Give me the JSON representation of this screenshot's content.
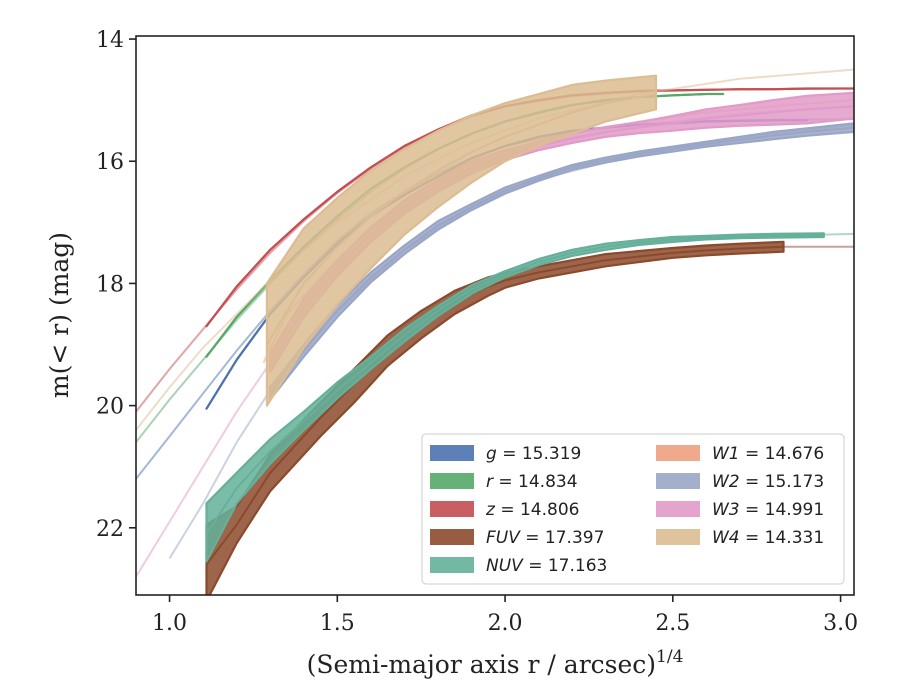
{
  "chart_data": {
    "type": "line",
    "xlabel": "(Semi-major axis r / arcsec)",
    "xlabel_exponent": "1/4",
    "ylabel": "m(< r) (mag)",
    "xlim": [
      0.9,
      3.04
    ],
    "ylim": [
      23.1,
      13.95
    ],
    "y_inverted": true,
    "x_ticks": [
      1.0,
      1.5,
      2.0,
      2.5,
      3.0
    ],
    "x_tick_labels": [
      "1.0",
      "1.5",
      "2.0",
      "2.5",
      "3.0"
    ],
    "y_ticks": [
      14,
      16,
      18,
      20,
      22
    ],
    "y_tick_labels": [
      "14",
      "16",
      "18",
      "20",
      "22"
    ],
    "grid": false,
    "legend_position": "bottom-right",
    "series": [
      {
        "name": "g",
        "value": "15.319",
        "color": "#4c72b0",
        "x": [
          1.11,
          1.2,
          1.3,
          1.4,
          1.5,
          1.6,
          1.7,
          1.8,
          1.9,
          2.0,
          2.1,
          2.2,
          2.3,
          2.4,
          2.5,
          2.6,
          2.7,
          2.8,
          2.9
        ],
        "y": [
          20.05,
          19.25,
          18.5,
          17.9,
          17.35,
          16.9,
          16.55,
          16.25,
          15.95,
          15.75,
          15.6,
          15.5,
          15.45,
          15.4,
          15.38,
          15.35,
          15.34,
          15.33,
          15.33
        ],
        "y_lower": [
          20.05,
          19.25,
          18.5,
          17.9,
          17.35,
          16.9,
          16.55,
          16.25,
          15.95,
          15.75,
          15.6,
          15.5,
          15.45,
          15.4,
          15.38,
          15.35,
          15.34,
          15.33,
          15.33
        ],
        "y_upper": [
          20.05,
          19.25,
          18.5,
          17.9,
          17.35,
          16.9,
          16.55,
          16.25,
          15.95,
          15.75,
          15.6,
          15.5,
          15.45,
          15.4,
          15.38,
          15.35,
          15.34,
          15.33,
          15.33
        ],
        "model_x": [
          0.9,
          1.0,
          1.1,
          1.2,
          1.3,
          1.4,
          1.5,
          1.6,
          1.7,
          1.8,
          1.9,
          2.0,
          2.2,
          2.4,
          2.6,
          2.8,
          3.04
        ],
        "model_y": [
          21.2,
          20.5,
          19.8,
          19.1,
          18.45,
          17.85,
          17.3,
          16.85,
          16.5,
          16.2,
          15.95,
          15.75,
          15.52,
          15.4,
          15.34,
          15.32,
          15.31
        ]
      },
      {
        "name": "r",
        "value": "14.834",
        "color": "#55a868",
        "x": [
          1.11,
          1.2,
          1.3,
          1.4,
          1.5,
          1.6,
          1.7,
          1.8,
          1.9,
          2.0,
          2.1,
          2.2,
          2.3,
          2.4,
          2.5,
          2.6,
          2.65
        ],
        "y": [
          19.2,
          18.55,
          17.95,
          17.4,
          16.9,
          16.45,
          16.1,
          15.8,
          15.55,
          15.35,
          15.2,
          15.08,
          15.0,
          14.95,
          14.92,
          14.9,
          14.9
        ],
        "y_lower": [
          19.2,
          18.55,
          17.95,
          17.4,
          16.9,
          16.45,
          16.1,
          15.8,
          15.55,
          15.35,
          15.2,
          15.08,
          15.0,
          14.95,
          14.92,
          14.9,
          14.9
        ],
        "y_upper": [
          19.2,
          18.55,
          17.95,
          17.4,
          16.9,
          16.45,
          16.1,
          15.8,
          15.55,
          15.35,
          15.2,
          15.08,
          15.0,
          14.95,
          14.92,
          14.9,
          14.9
        ],
        "model_x": [
          0.9,
          1.0,
          1.1,
          1.2,
          1.3,
          1.4,
          1.5,
          1.6,
          1.7,
          1.8,
          1.9,
          2.0,
          2.2,
          2.4,
          2.6
        ],
        "model_y": [
          20.6,
          19.9,
          19.25,
          18.6,
          18.0,
          17.45,
          16.95,
          16.5,
          16.12,
          15.8,
          15.55,
          15.35,
          15.08,
          14.95,
          14.9
        ]
      },
      {
        "name": "z",
        "value": "14.806",
        "color": "#c44e52",
        "x": [
          1.11,
          1.2,
          1.3,
          1.4,
          1.5,
          1.6,
          1.7,
          1.8,
          1.9,
          2.0,
          2.1,
          2.2,
          2.3,
          2.4,
          2.5,
          2.6,
          2.7,
          2.8,
          2.9,
          3.04
        ],
        "y": [
          18.7,
          18.05,
          17.45,
          16.95,
          16.5,
          16.1,
          15.75,
          15.48,
          15.25,
          15.1,
          15.0,
          14.92,
          14.88,
          14.85,
          14.84,
          14.83,
          14.82,
          14.82,
          14.81,
          14.81
        ],
        "y_lower": [
          18.7,
          18.05,
          17.45,
          16.95,
          16.5,
          16.1,
          15.75,
          15.48,
          15.25,
          15.1,
          15.0,
          14.92,
          14.88,
          14.85,
          14.84,
          14.83,
          14.82,
          14.82,
          14.81,
          14.81
        ],
        "y_upper": [
          18.7,
          18.05,
          17.45,
          16.95,
          16.5,
          16.1,
          15.75,
          15.48,
          15.25,
          15.1,
          15.0,
          14.92,
          14.88,
          14.85,
          14.84,
          14.83,
          14.82,
          14.82,
          14.81,
          14.81
        ],
        "model_x": [
          0.9,
          1.0,
          1.1,
          1.2,
          1.3,
          1.4,
          1.5,
          1.6,
          1.7,
          1.8,
          1.9,
          2.0,
          2.2,
          2.4,
          2.6,
          2.8,
          3.04
        ],
        "model_y": [
          20.1,
          19.4,
          18.75,
          18.1,
          17.5,
          16.98,
          16.52,
          16.12,
          15.78,
          15.5,
          15.27,
          15.1,
          14.93,
          14.86,
          14.83,
          14.82,
          14.81
        ]
      },
      {
        "name": "FUV",
        "value": "17.397",
        "color": "#8c4a2c",
        "x": [
          1.11,
          1.2,
          1.3,
          1.45,
          1.55,
          1.65,
          1.75,
          1.85,
          1.95,
          2.0,
          2.1,
          2.2,
          2.3,
          2.4,
          2.5,
          2.6,
          2.7,
          2.83
        ],
        "y": [
          22.6,
          21.95,
          21.1,
          20.2,
          19.65,
          19.1,
          18.65,
          18.3,
          18.05,
          17.95,
          17.82,
          17.72,
          17.62,
          17.56,
          17.5,
          17.46,
          17.43,
          17.4
        ],
        "y_lower": [
          23.2,
          22.25,
          21.4,
          20.5,
          19.95,
          19.35,
          18.9,
          18.5,
          18.2,
          18.07,
          17.92,
          17.82,
          17.72,
          17.65,
          17.58,
          17.54,
          17.51,
          17.48
        ],
        "y_upper": [
          21.95,
          21.65,
          20.8,
          19.95,
          19.4,
          18.85,
          18.45,
          18.12,
          17.9,
          17.83,
          17.72,
          17.62,
          17.52,
          17.47,
          17.42,
          17.38,
          17.35,
          17.32
        ],
        "model_x": [
          2.83,
          2.9,
          3.04
        ],
        "model_y": [
          17.4,
          17.4,
          17.4
        ]
      },
      {
        "name": "NUV",
        "value": "17.163",
        "color": "#64b09a",
        "x": [
          1.11,
          1.2,
          1.3,
          1.4,
          1.5,
          1.6,
          1.7,
          1.8,
          1.9,
          2.0,
          2.1,
          2.2,
          2.3,
          2.4,
          2.5,
          2.6,
          2.7,
          2.8,
          2.95
        ],
        "y": [
          22.1,
          21.35,
          20.75,
          20.25,
          19.75,
          19.3,
          18.85,
          18.45,
          18.1,
          17.85,
          17.65,
          17.5,
          17.4,
          17.33,
          17.28,
          17.25,
          17.23,
          17.22,
          17.21
        ],
        "y_lower": [
          22.55,
          21.6,
          20.95,
          20.4,
          19.88,
          19.4,
          18.95,
          18.53,
          18.17,
          17.9,
          17.7,
          17.55,
          17.45,
          17.37,
          17.32,
          17.28,
          17.26,
          17.25,
          17.24
        ],
        "y_upper": [
          21.6,
          21.1,
          20.55,
          20.1,
          19.62,
          19.2,
          18.75,
          18.37,
          18.03,
          17.8,
          17.6,
          17.45,
          17.35,
          17.29,
          17.24,
          17.22,
          17.2,
          17.19,
          17.18
        ],
        "model_x": [
          2.95,
          3.04
        ],
        "model_y": [
          17.2,
          17.19
        ]
      },
      {
        "name": "W1",
        "value": "14.676",
        "color": "#f0a07e",
        "x": [],
        "y": [],
        "y_lower": [],
        "y_upper": [],
        "model_x": [
          1.28,
          1.35,
          1.45,
          1.55,
          1.65,
          1.75,
          1.85,
          1.95,
          2.05,
          2.2,
          2.4,
          2.6,
          2.8,
          3.04
        ],
        "model_y": [
          19.3,
          18.5,
          17.9,
          17.35,
          16.9,
          16.55,
          16.25,
          16.0,
          15.8,
          15.55,
          15.35,
          15.2,
          15.1,
          15.0
        ]
      },
      {
        "name": "W2",
        "value": "15.173",
        "color": "#9aa6c6",
        "x": [
          1.3,
          1.4,
          1.5,
          1.6,
          1.7,
          1.8,
          1.9,
          2.0,
          2.1,
          2.2,
          2.3,
          2.4,
          2.5,
          2.6,
          2.7,
          2.8,
          2.9,
          3.04
        ],
        "y": [
          19.8,
          19.1,
          18.45,
          17.9,
          17.45,
          17.05,
          16.75,
          16.48,
          16.28,
          16.1,
          15.98,
          15.88,
          15.8,
          15.72,
          15.65,
          15.58,
          15.52,
          15.45
        ],
        "y_lower": [
          19.9,
          19.2,
          18.55,
          17.98,
          17.52,
          17.12,
          16.8,
          16.53,
          16.32,
          16.14,
          16.02,
          15.92,
          15.84,
          15.76,
          15.7,
          15.64,
          15.58,
          15.52
        ],
        "y_upper": [
          19.7,
          19.0,
          18.35,
          17.82,
          17.38,
          16.98,
          16.7,
          16.43,
          16.24,
          16.06,
          15.94,
          15.84,
          15.76,
          15.68,
          15.6,
          15.52,
          15.46,
          15.38
        ],
        "model_x": [
          1.0,
          1.1,
          1.2,
          1.3,
          1.4,
          1.5,
          1.7,
          1.9,
          2.1,
          2.4,
          2.7,
          3.04
        ],
        "model_y": [
          22.5,
          21.6,
          20.6,
          19.75,
          19.05,
          18.45,
          17.45,
          16.75,
          16.3,
          15.88,
          15.62,
          15.4
        ]
      },
      {
        "name": "W3",
        "value": "14.991",
        "color": "#e29ac8",
        "x": [
          1.3,
          1.4,
          1.5,
          1.6,
          1.7,
          1.8,
          1.9,
          2.0,
          2.1,
          2.2,
          2.3,
          2.4,
          2.5,
          2.6,
          2.7,
          2.8,
          2.9,
          3.04
        ],
        "y": [
          19.3,
          18.4,
          17.75,
          17.2,
          16.75,
          16.4,
          16.1,
          15.9,
          15.75,
          15.62,
          15.52,
          15.45,
          15.38,
          15.3,
          15.25,
          15.2,
          15.15,
          15.1
        ],
        "y_lower": [
          19.45,
          18.55,
          17.88,
          17.32,
          16.86,
          16.5,
          16.2,
          15.98,
          15.82,
          15.7,
          15.6,
          15.54,
          15.5,
          15.45,
          15.42,
          15.4,
          15.38,
          15.3
        ],
        "y_upper": [
          19.15,
          18.25,
          17.62,
          17.08,
          16.64,
          16.3,
          16.0,
          15.82,
          15.68,
          15.54,
          15.44,
          15.36,
          15.26,
          15.15,
          15.08,
          15.0,
          14.93,
          14.88
        ],
        "model_x": [
          0.9,
          1.0,
          1.1,
          1.2,
          1.3,
          1.5,
          1.7,
          1.9,
          2.1,
          2.4,
          2.7,
          3.04
        ],
        "model_y": [
          22.8,
          21.9,
          21.0,
          20.1,
          19.3,
          17.85,
          16.8,
          16.15,
          15.75,
          15.42,
          15.22,
          15.1
        ]
      },
      {
        "name": "W4",
        "value": "14.331",
        "color": "#dcbc92",
        "x": [
          1.29,
          1.4,
          1.5,
          1.6,
          1.7,
          1.8,
          1.9,
          2.0,
          2.1,
          2.2,
          2.3,
          2.45
        ],
        "y": [
          19.0,
          18.0,
          17.4,
          16.9,
          16.5,
          16.15,
          15.85,
          15.6,
          15.4,
          15.2,
          15.05,
          14.9
        ],
        "y_lower": [
          20.0,
          19.05,
          18.35,
          17.75,
          17.2,
          16.75,
          16.35,
          16.0,
          15.75,
          15.55,
          15.35,
          15.15
        ],
        "y_upper": [
          18.0,
          17.1,
          16.6,
          16.15,
          15.8,
          15.5,
          15.25,
          15.05,
          14.9,
          14.75,
          14.68,
          14.6
        ],
        "model_x": [
          0.9,
          1.0,
          1.1,
          1.2,
          1.3,
          1.4,
          1.5,
          1.7,
          1.9,
          2.1,
          2.4,
          2.7,
          3.04
        ],
        "model_y": [
          20.4,
          19.7,
          19.05,
          18.5,
          17.95,
          17.45,
          17.0,
          16.25,
          15.7,
          15.3,
          14.9,
          14.65,
          14.5
        ]
      }
    ]
  }
}
